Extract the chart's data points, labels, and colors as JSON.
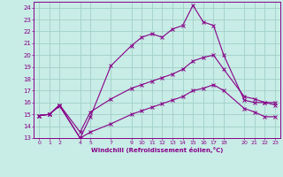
{
  "background_color": "#c8ece6",
  "grid_color": "#a0d0c8",
  "line_color": "#880088",
  "xlim": [
    -0.5,
    23.5
  ],
  "ylim": [
    13,
    24.5
  ],
  "xticks": [
    0,
    1,
    2,
    4,
    5,
    7,
    9,
    10,
    11,
    12,
    13,
    14,
    15,
    16,
    17,
    18,
    20,
    21,
    22,
    23
  ],
  "yticks": [
    13,
    14,
    15,
    16,
    17,
    18,
    19,
    20,
    21,
    22,
    23,
    24
  ],
  "xlabel": "Windchill (Refroidissement éolien,°C)",
  "curve1_x": [
    0,
    1,
    2,
    4,
    5,
    7,
    9,
    10,
    11,
    12,
    13,
    14,
    15,
    16,
    17,
    18,
    20,
    21,
    22,
    23
  ],
  "curve1_y": [
    14.9,
    15.0,
    15.7,
    13.0,
    14.8,
    19.1,
    20.8,
    21.5,
    21.8,
    21.5,
    22.2,
    22.5,
    24.2,
    22.8,
    22.5,
    20.0,
    16.2,
    16.0,
    16.0,
    16.0
  ],
  "curve2_x": [
    0,
    1,
    2,
    4,
    5,
    7,
    9,
    10,
    11,
    12,
    13,
    14,
    15,
    16,
    17,
    18,
    20,
    21,
    22,
    23
  ],
  "curve2_y": [
    14.9,
    15.0,
    15.8,
    13.5,
    15.2,
    16.3,
    17.2,
    17.5,
    17.8,
    18.1,
    18.4,
    18.8,
    19.5,
    19.8,
    20.0,
    18.8,
    16.5,
    16.3,
    16.0,
    15.8
  ],
  "curve3_x": [
    0,
    1,
    2,
    4,
    5,
    7,
    9,
    10,
    11,
    12,
    13,
    14,
    15,
    16,
    17,
    18,
    20,
    21,
    22,
    23
  ],
  "curve3_y": [
    14.9,
    15.0,
    15.8,
    13.0,
    13.5,
    14.2,
    15.0,
    15.3,
    15.6,
    15.9,
    16.2,
    16.5,
    17.0,
    17.2,
    17.5,
    17.0,
    15.5,
    15.2,
    14.8,
    14.8
  ]
}
